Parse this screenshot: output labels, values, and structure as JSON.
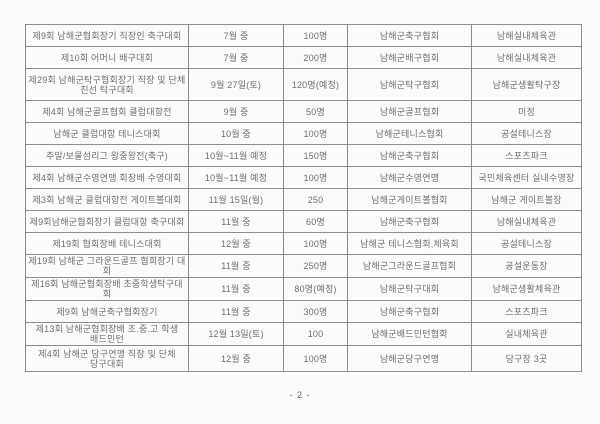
{
  "colors": {
    "background": "#fbfbfa",
    "text": "#6f6f6f",
    "border": "#8c8c8c"
  },
  "page": {
    "number_label": "- 2 -"
  },
  "table": {
    "rows": [
      {
        "name": "제9회 남해군협회장기 직장인 축구대회",
        "date": "7월 중",
        "count": "100명",
        "organizer": "남해군축구협회",
        "venue": "남해실내체육관"
      },
      {
        "name": "제10회 어머니 배구대회",
        "date": "7월 중",
        "count": "200명",
        "organizer": "남해군배구협회",
        "venue": "남해실내체육관"
      },
      {
        "name": "제29회 남해군탁구협회장기 직장 및 단체\n친선 탁구대회",
        "date": "9월 27일(토)",
        "count": "120명(예정)",
        "organizer": "남해군탁구협회",
        "venue": "남해군생활탁구장"
      },
      {
        "name": "제4회 남해군골프협회 클럽대항전",
        "date": "9월 중",
        "count": "50명",
        "organizer": "남해군골프협회",
        "venue": "미정"
      },
      {
        "name": "남해군 클럽대항 테니스대회",
        "date": "10월 중",
        "count": "100명",
        "organizer": "남해군테니스협회",
        "venue": "공설테니스장"
      },
      {
        "name": "주말/보물섬리그 왕중왕전(축구)",
        "date": "10월~11월 예정",
        "count": "150명",
        "organizer": "남해군축구협회",
        "venue": "스포츠파크"
      },
      {
        "name": "제4회 남해군수영연맹 회장배 수영대회",
        "date": "10월~11월 예정",
        "count": "100명",
        "organizer": "남해군수영연맹",
        "venue": "국민체육센터 실내수영장"
      },
      {
        "name": "제3회 남해군 클럽대항전 게이트볼대회",
        "date": "11월 15일(월)",
        "count": "250",
        "organizer": "남해군게이트볼협회",
        "venue": "남해군 게이트볼장"
      },
      {
        "name": "제9회남해군협회장기 클럽대항 축구대회",
        "date": "11월 중",
        "count": "60명",
        "organizer": "남해군축구협회",
        "venue": "남해실내체육관"
      },
      {
        "name": "제19회 협회장배 테니스대회",
        "date": "12월 중",
        "count": "100명",
        "organizer": "남해군 테니스협회,체육회",
        "venue": "공설테니스장"
      },
      {
        "name": "제19회 남해군 그라운드골프 협회장기 대회",
        "date": "11월 중",
        "count": "250명",
        "organizer": "남해군그라운드골프협회",
        "venue": "공설운동장"
      },
      {
        "name": "제16회 남해군협회장배 초중학생탁구대회",
        "date": "11월 중",
        "count": "80명(예정)",
        "organizer": "남해군탁구대회",
        "venue": "남해군생활체육관"
      },
      {
        "name": "제9회 남해군축구협회장기",
        "date": "11월 중",
        "count": "300명",
        "organizer": "남해군축구협회",
        "venue": "스포츠파크"
      },
      {
        "name": "제13회 남해군협회장배 초.중.고 학생\n배드민턴",
        "date": "12월 13일(토)",
        "count": "100",
        "organizer": "남해군배드민턴협회",
        "venue": "실내체육관"
      },
      {
        "name": "제4회 남해군 당구연맹 직장 및 단체\n당구대회",
        "date": "12월 중",
        "count": "100명",
        "organizer": "남해군당구연맹",
        "venue": "당구장 3곳"
      }
    ]
  }
}
